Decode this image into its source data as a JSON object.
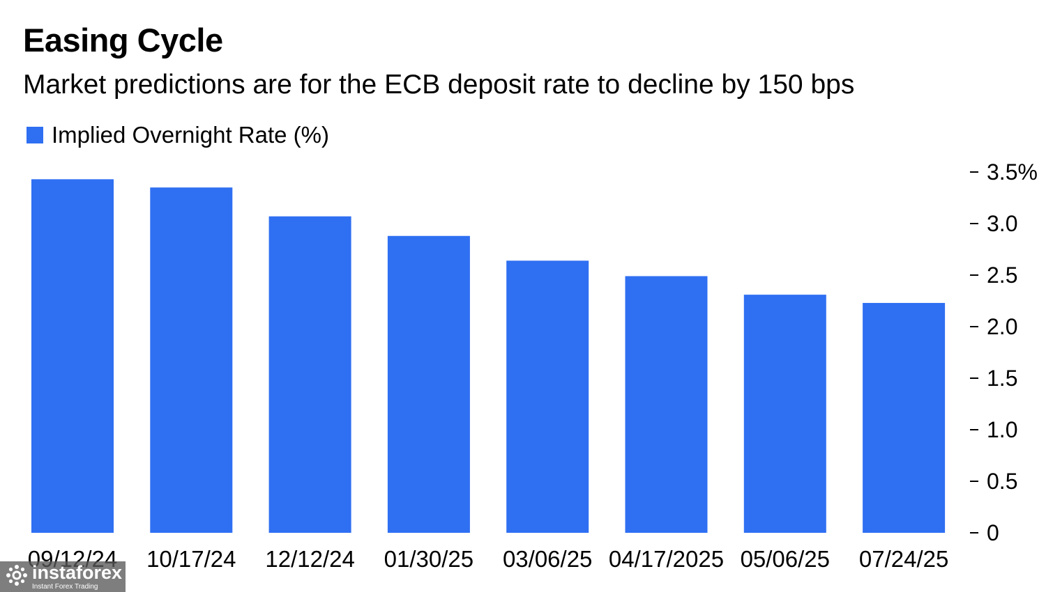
{
  "chart_data": {
    "type": "bar",
    "title": "Easing Cycle",
    "subtitle": "Market predictions are for the ECB deposit rate to decline by 150 bps",
    "categories": [
      "09/12/24",
      "10/17/24",
      "12/12/24",
      "01/30/25",
      "03/06/25",
      "04/17/2025",
      "05/06/25",
      "07/24/25"
    ],
    "series": [
      {
        "name": "Implied Overnight Rate (%)",
        "values": [
          3.43,
          3.35,
          3.07,
          2.88,
          2.64,
          2.49,
          2.31,
          2.23
        ],
        "color": "#2f6ff2"
      }
    ],
    "yaxis": {
      "position": "right",
      "ylim": [
        0,
        3.5
      ],
      "ticks": [
        {
          "value": 3.5,
          "label": "3.5%"
        },
        {
          "value": 3.0,
          "label": "3.0"
        },
        {
          "value": 2.5,
          "label": "2.5"
        },
        {
          "value": 2.0,
          "label": "2.0"
        },
        {
          "value": 1.5,
          "label": "1.5"
        },
        {
          "value": 1.0,
          "label": "1.0"
        },
        {
          "value": 0.5,
          "label": "0.5"
        },
        {
          "value": 0,
          "label": "0"
        }
      ]
    },
    "legend_placement": "top-left",
    "grid": false
  },
  "watermark": {
    "name": "instaforex",
    "tagline": "Instant Forex Trading",
    "icon": "instaforex-logo-icon"
  }
}
